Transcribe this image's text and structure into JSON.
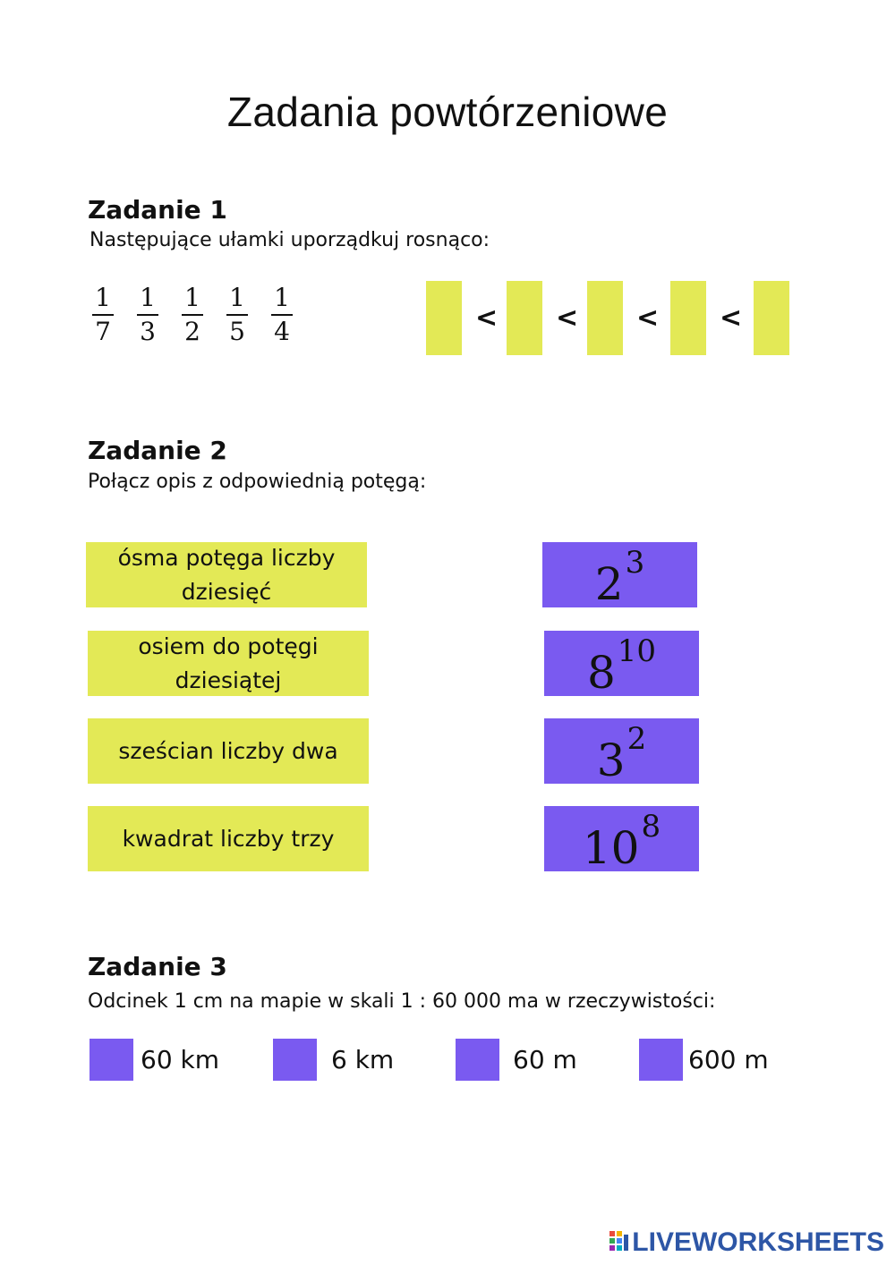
{
  "title": "Zadania powtórzeniowe",
  "task1": {
    "heading": "Zadanie 1",
    "instruction": "Następujące ułamki uporządkuj rosnąco:",
    "fractions": [
      {
        "num": "1",
        "den": "7"
      },
      {
        "num": "1",
        "den": "3"
      },
      {
        "num": "1",
        "den": "2"
      },
      {
        "num": "1",
        "den": "5"
      },
      {
        "num": "1",
        "den": "4"
      }
    ],
    "comparator": "<"
  },
  "task2": {
    "heading": "Zadanie 2",
    "instruction": "Połącz opis z odpowiednią potęgą:",
    "descriptions": [
      "ósma potęga liczby dziesięć",
      "osiem do potęgi dziesiątej",
      "sześcian liczby dwa",
      "kwadrat liczby trzy"
    ],
    "powers": [
      {
        "base": "2",
        "exp": "3"
      },
      {
        "base": "8",
        "exp": "10"
      },
      {
        "base": "3",
        "exp": "2"
      },
      {
        "base": "10",
        "exp": "8"
      }
    ]
  },
  "task3": {
    "heading": "Zadanie 3",
    "question": "Odcinek 1 cm na mapie w skali 1 : 60 000 ma w rzeczywistości:",
    "options": [
      "60 km",
      "6 km",
      "60 m",
      "600 m"
    ]
  },
  "brand": "LIVEWORKSHEETS",
  "colors": {
    "slot_yellow": "#e3e956",
    "purple": "#7a5af0",
    "brand_blue": "#2d56a6"
  }
}
